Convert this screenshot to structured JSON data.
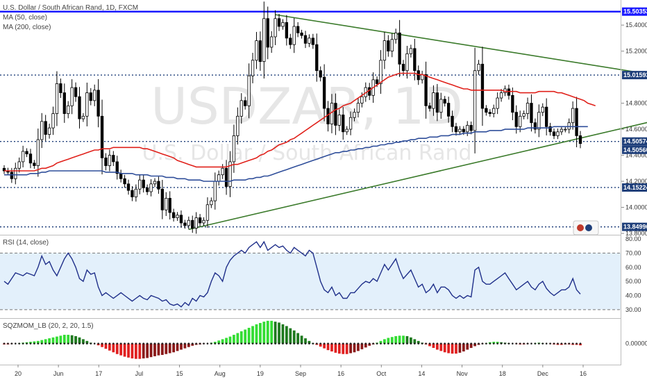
{
  "chart_data": {
    "type": "candlestick",
    "title": "U.S. Dollar / South African Rand, 1D, FXCM",
    "watermark_symbol": "USDZAR, 1D",
    "watermark_name": "U.S. Dollar / South African Rand",
    "legend": [
      "MA (50, close)",
      "MA (200, close)"
    ],
    "price_axis": {
      "range": [
        13.8,
        15.55
      ],
      "ticks": [
        "15.40000",
        "15.20000",
        "14.80000",
        "14.60000",
        "14.40000",
        "14.20000",
        "14.00000",
        "13.80000"
      ],
      "level_labels": [
        "15.50353",
        "15.01593",
        "14.50574",
        "14.50560",
        "14.15224",
        "13.84996"
      ]
    },
    "time_axis": [
      "20",
      "Jun",
      "17",
      "Jul",
      "15",
      "Aug",
      "19",
      "Sep",
      "16",
      "Oct",
      "14",
      "Nov",
      "18",
      "Dec",
      "16"
    ],
    "levels": [
      {
        "value": 15.50353,
        "style": "solid",
        "color": "#1a1aff"
      },
      {
        "value": 15.01593,
        "style": "dotted",
        "color": "#1f3f7a"
      },
      {
        "value": 14.50574,
        "style": "dotted",
        "color": "#1f3f7a"
      },
      {
        "value": 14.15224,
        "style": "dotted",
        "color": "#1f3f7a"
      },
      {
        "value": 13.84996,
        "style": "dotted",
        "color": "#1f3f7a"
      }
    ],
    "trendlines": [
      {
        "from": [
          72,
          15.48
        ],
        "to": [
          172,
          15.02
        ],
        "color": "#3a7a2a"
      },
      {
        "from": [
          49,
          13.83
        ],
        "to": [
          175,
          14.68
        ],
        "color": "#3a7a2a"
      }
    ],
    "close": [
      14.28,
      14.27,
      14.22,
      14.3,
      14.35,
      14.43,
      14.41,
      14.34,
      14.32,
      14.52,
      14.66,
      14.56,
      14.61,
      14.72,
      14.95,
      14.88,
      14.72,
      14.78,
      14.92,
      14.85,
      14.68,
      14.7,
      14.88,
      14.82,
      14.9,
      14.7,
      14.38,
      14.32,
      14.4,
      14.35,
      14.26,
      14.22,
      14.18,
      14.13,
      14.08,
      14.14,
      14.21,
      14.15,
      14.12,
      14.18,
      14.2,
      14.14,
      13.98,
      14.07,
      13.96,
      13.92,
      13.94,
      13.88,
      13.86,
      13.9,
      13.84,
      13.92,
      13.88,
      13.9,
      14.02,
      14.05,
      14.2,
      14.25,
      14.3,
      14.16,
      14.35,
      14.55,
      14.7,
      14.82,
      14.78,
      15.01,
      15.13,
      15.28,
      15.12,
      15.45,
      15.23,
      15.31,
      15.45,
      15.39,
      15.42,
      15.3,
      15.25,
      15.39,
      15.34,
      15.32,
      15.26,
      15.3,
      15.25,
      15.05,
      15.0,
      14.76,
      14.64,
      14.8,
      14.63,
      14.71,
      14.58,
      14.6,
      14.69,
      14.73,
      14.8,
      14.85,
      14.92,
      14.86,
      14.98,
      14.95,
      15.13,
      15.28,
      15.2,
      15.29,
      15.34,
      15.1,
      15.05,
      15.18,
      15.22,
      15.05,
      14.98,
      15.02,
      14.78,
      14.76,
      14.88,
      14.73,
      14.83,
      14.8,
      14.7,
      14.62,
      14.58,
      14.6,
      14.58,
      14.63,
      14.59,
      15.05,
      15.1,
      14.76,
      14.73,
      14.72,
      14.76,
      14.84,
      14.88,
      14.91,
      14.86,
      14.73,
      14.62,
      14.7,
      14.72,
      14.8,
      14.65,
      14.6,
      14.73,
      14.77,
      14.62,
      14.58,
      14.55,
      14.58,
      14.6,
      14.6,
      14.65,
      14.76,
      14.55,
      14.49
    ],
    "ma50": [
      14.28,
      14.28,
      14.28,
      14.28,
      14.28,
      14.28,
      14.28,
      14.28,
      14.28,
      14.29,
      14.3,
      14.3,
      14.31,
      14.32,
      14.34,
      14.35,
      14.36,
      14.37,
      14.38,
      14.39,
      14.4,
      14.41,
      14.42,
      14.43,
      14.44,
      14.44,
      14.45,
      14.45,
      14.45,
      14.46,
      14.46,
      14.46,
      14.46,
      14.46,
      14.46,
      14.46,
      14.46,
      14.45,
      14.45,
      14.44,
      14.43,
      14.42,
      14.41,
      14.4,
      14.39,
      14.38,
      14.36,
      14.35,
      14.34,
      14.33,
      14.32,
      14.31,
      14.31,
      14.31,
      14.31,
      14.31,
      14.31,
      14.31,
      14.31,
      14.31,
      14.32,
      14.33,
      14.33,
      14.34,
      14.35,
      14.36,
      14.37,
      14.38,
      14.4,
      14.41,
      14.43,
      14.44,
      14.46,
      14.48,
      14.49,
      14.5,
      14.52,
      14.53,
      14.55,
      14.57,
      14.59,
      14.61,
      14.63,
      14.65,
      14.67,
      14.69,
      14.71,
      14.73,
      14.75,
      14.76,
      14.78,
      14.79,
      14.8,
      14.82,
      14.84,
      14.86,
      14.88,
      14.9,
      14.92,
      14.94,
      14.96,
      14.98,
      15.0,
      15.01,
      15.02,
      15.03,
      15.03,
      15.03,
      15.03,
      15.03,
      15.02,
      15.02,
      15.01,
      15.0,
      14.99,
      14.98,
      14.97,
      14.96,
      14.95,
      14.94,
      14.93,
      14.92,
      14.91,
      14.91,
      14.9,
      14.9,
      14.9,
      14.9,
      14.9,
      14.9,
      14.9,
      14.9,
      14.9,
      14.89,
      14.89,
      14.89,
      14.89,
      14.88,
      14.88,
      14.88,
      14.88,
      14.88,
      14.89,
      14.89,
      14.89,
      14.89,
      14.89,
      14.88,
      14.88,
      14.87,
      14.86,
      14.85,
      14.84,
      14.83,
      14.82,
      14.8,
      14.79,
      14.78
    ],
    "ma200": [
      14.25,
      14.25,
      14.25,
      14.25,
      14.25,
      14.25,
      14.25,
      14.26,
      14.26,
      14.26,
      14.27,
      14.27,
      14.28,
      14.28,
      14.28,
      14.28,
      14.28,
      14.28,
      14.28,
      14.28,
      14.28,
      14.28,
      14.28,
      14.28,
      14.28,
      14.28,
      14.28,
      14.27,
      14.27,
      14.27,
      14.27,
      14.26,
      14.26,
      14.26,
      14.26,
      14.25,
      14.25,
      14.25,
      14.25,
      14.24,
      14.24,
      14.24,
      14.24,
      14.23,
      14.23,
      14.23,
      14.22,
      14.22,
      14.22,
      14.21,
      14.21,
      14.21,
      14.21,
      14.2,
      14.2,
      14.2,
      14.2,
      14.2,
      14.2,
      14.2,
      14.2,
      14.21,
      14.21,
      14.21,
      14.21,
      14.22,
      14.22,
      14.23,
      14.23,
      14.24,
      14.24,
      14.25,
      14.26,
      14.27,
      14.28,
      14.29,
      14.3,
      14.31,
      14.32,
      14.33,
      14.34,
      14.35,
      14.36,
      14.37,
      14.38,
      14.39,
      14.4,
      14.41,
      14.42,
      14.42,
      14.43,
      14.43,
      14.44,
      14.44,
      14.45,
      14.45,
      14.46,
      14.46,
      14.47,
      14.47,
      14.48,
      14.48,
      14.49,
      14.49,
      14.5,
      14.5,
      14.51,
      14.51,
      14.52,
      14.52,
      14.53,
      14.53,
      14.53,
      14.54,
      14.54,
      14.54,
      14.55,
      14.55,
      14.55,
      14.56,
      14.56,
      14.56,
      14.57,
      14.57,
      14.57,
      14.58,
      14.58,
      14.58,
      14.58,
      14.59,
      14.59,
      14.59,
      14.59,
      14.6,
      14.6,
      14.6,
      14.6,
      14.6,
      14.6,
      14.61,
      14.61,
      14.61,
      14.61,
      14.61,
      14.61,
      14.61,
      14.62,
      14.62,
      14.62,
      14.62,
      14.62,
      14.62,
      14.62,
      14.62,
      14.62,
      14.62
    ],
    "rsi": {
      "title": "RSI (14, close)",
      "range": [
        25,
        82
      ],
      "ticks": [
        "80.00",
        "70.00",
        "60.00",
        "50.00",
        "40.00",
        "30.00"
      ],
      "bands": [
        30,
        70
      ],
      "values": [
        50,
        48,
        52,
        56,
        55,
        54,
        56,
        55,
        54,
        60,
        68,
        62,
        64,
        58,
        54,
        60,
        66,
        70,
        66,
        60,
        52,
        50,
        58,
        55,
        56,
        46,
        40,
        42,
        40,
        38,
        40,
        42,
        40,
        38,
        36,
        38,
        40,
        38,
        37,
        40,
        39,
        38,
        36,
        37,
        34,
        33,
        34,
        32,
        35,
        33,
        38,
        36,
        40,
        39,
        42,
        50,
        56,
        54,
        50,
        60,
        65,
        68,
        70,
        72,
        70,
        74,
        76,
        78,
        74,
        78,
        72,
        74,
        76,
        74,
        75,
        72,
        70,
        74,
        72,
        70,
        68,
        72,
        70,
        60,
        50,
        44,
        42,
        46,
        40,
        42,
        38,
        38,
        42,
        42,
        45,
        48,
        50,
        49,
        52,
        50,
        56,
        62,
        58,
        62,
        66,
        58,
        52,
        55,
        58,
        52,
        46,
        48,
        42,
        44,
        48,
        42,
        46,
        46,
        44,
        40,
        38,
        40,
        38,
        40,
        39,
        58,
        60,
        50,
        48,
        48,
        50,
        52,
        54,
        56,
        52,
        48,
        44,
        46,
        48,
        50,
        46,
        44,
        48,
        50,
        45,
        42,
        40,
        42,
        44,
        44,
        46,
        52,
        44,
        41
      ]
    },
    "sqzmom": {
      "title": "SQZMOM_LB (20, 2, 20, 1.5)",
      "range": [
        -0.45,
        0.55
      ],
      "ticks": [
        "0.00000"
      ],
      "values": [
        -0.02,
        -0.02,
        -0.01,
        0.0,
        0.01,
        0.02,
        0.03,
        0.04,
        0.05,
        0.06,
        0.08,
        0.1,
        0.12,
        0.14,
        0.16,
        0.18,
        0.2,
        0.2,
        0.19,
        0.17,
        0.14,
        0.1,
        0.06,
        0.02,
        0.0,
        -0.04,
        -0.08,
        -0.12,
        -0.16,
        -0.2,
        -0.24,
        -0.27,
        -0.3,
        -0.32,
        -0.34,
        -0.35,
        -0.35,
        -0.34,
        -0.33,
        -0.31,
        -0.29,
        -0.27,
        -0.26,
        -0.24,
        -0.22,
        -0.2,
        -0.17,
        -0.14,
        -0.11,
        -0.08,
        -0.05,
        -0.03,
        -0.02,
        -0.01,
        0.0,
        0.02,
        0.04,
        0.07,
        0.1,
        0.13,
        0.16,
        0.2,
        0.24,
        0.28,
        0.32,
        0.36,
        0.4,
        0.44,
        0.47,
        0.5,
        0.52,
        0.52,
        0.5,
        0.48,
        0.44,
        0.4,
        0.35,
        0.3,
        0.24,
        0.18,
        0.12,
        0.06,
        0.01,
        -0.03,
        -0.07,
        -0.11,
        -0.15,
        -0.18,
        -0.21,
        -0.23,
        -0.24,
        -0.24,
        -0.22,
        -0.2,
        -0.17,
        -0.13,
        -0.09,
        -0.05,
        -0.02,
        0.02,
        0.06,
        0.1,
        0.13,
        0.15,
        0.17,
        0.18,
        0.18,
        0.17,
        0.14,
        0.1,
        0.06,
        0.02,
        -0.02,
        -0.06,
        -0.1,
        -0.14,
        -0.17,
        -0.2,
        -0.22,
        -0.23,
        -0.23,
        -0.21,
        -0.18,
        -0.14,
        -0.1,
        -0.06,
        -0.03,
        -0.01,
        0.01,
        0.03,
        0.04,
        0.04,
        0.03,
        0.02,
        0.01,
        0.0,
        -0.01,
        -0.02,
        -0.02,
        -0.01,
        0.0,
        0.01,
        0.02,
        0.01,
        0.0,
        -0.01,
        -0.02,
        -0.03,
        -0.03,
        -0.02,
        -0.02,
        -0.03,
        -0.03,
        -0.04
      ]
    }
  }
}
